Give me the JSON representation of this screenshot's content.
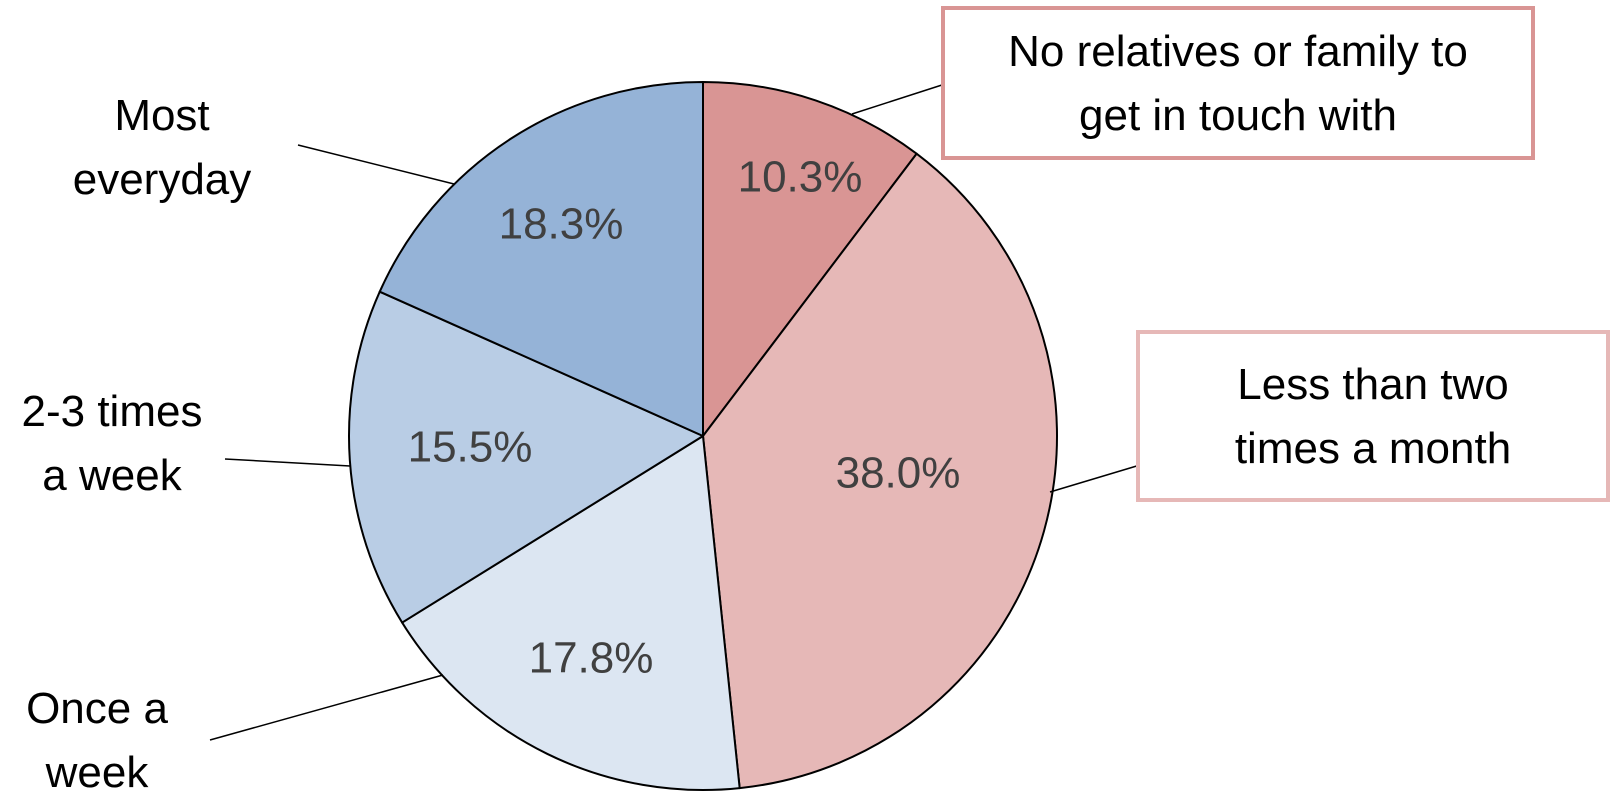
{
  "chart_data": {
    "type": "pie",
    "title": "",
    "start_angle_deg": 0,
    "direction": "clockwise",
    "slices": [
      {
        "label": [
          "No relatives or family to",
          "get in touch with"
        ],
        "value": 10.3,
        "value_label": "10.3%",
        "color": "#D99594",
        "boxed": true,
        "box_color": "#D99594"
      },
      {
        "label": [
          "Less than two",
          "times a month"
        ],
        "value": 38.0,
        "value_label": "38.0%",
        "color": "#E6B8B7",
        "boxed": true,
        "box_color": "#E6B8B7"
      },
      {
        "label": [
          "Once a",
          "week"
        ],
        "value": 17.8,
        "value_label": "17.8%",
        "color": "#DCE6F2",
        "boxed": false
      },
      {
        "label": [
          "2-3 times",
          "a week"
        ],
        "value": 15.5,
        "value_label": "15.5%",
        "color": "#B9CDE5",
        "boxed": false
      },
      {
        "label": [
          "Most",
          "everyday"
        ],
        "value": 18.3,
        "value_label": "18.3%",
        "color": "#95B3D7",
        "boxed": false
      }
    ]
  }
}
